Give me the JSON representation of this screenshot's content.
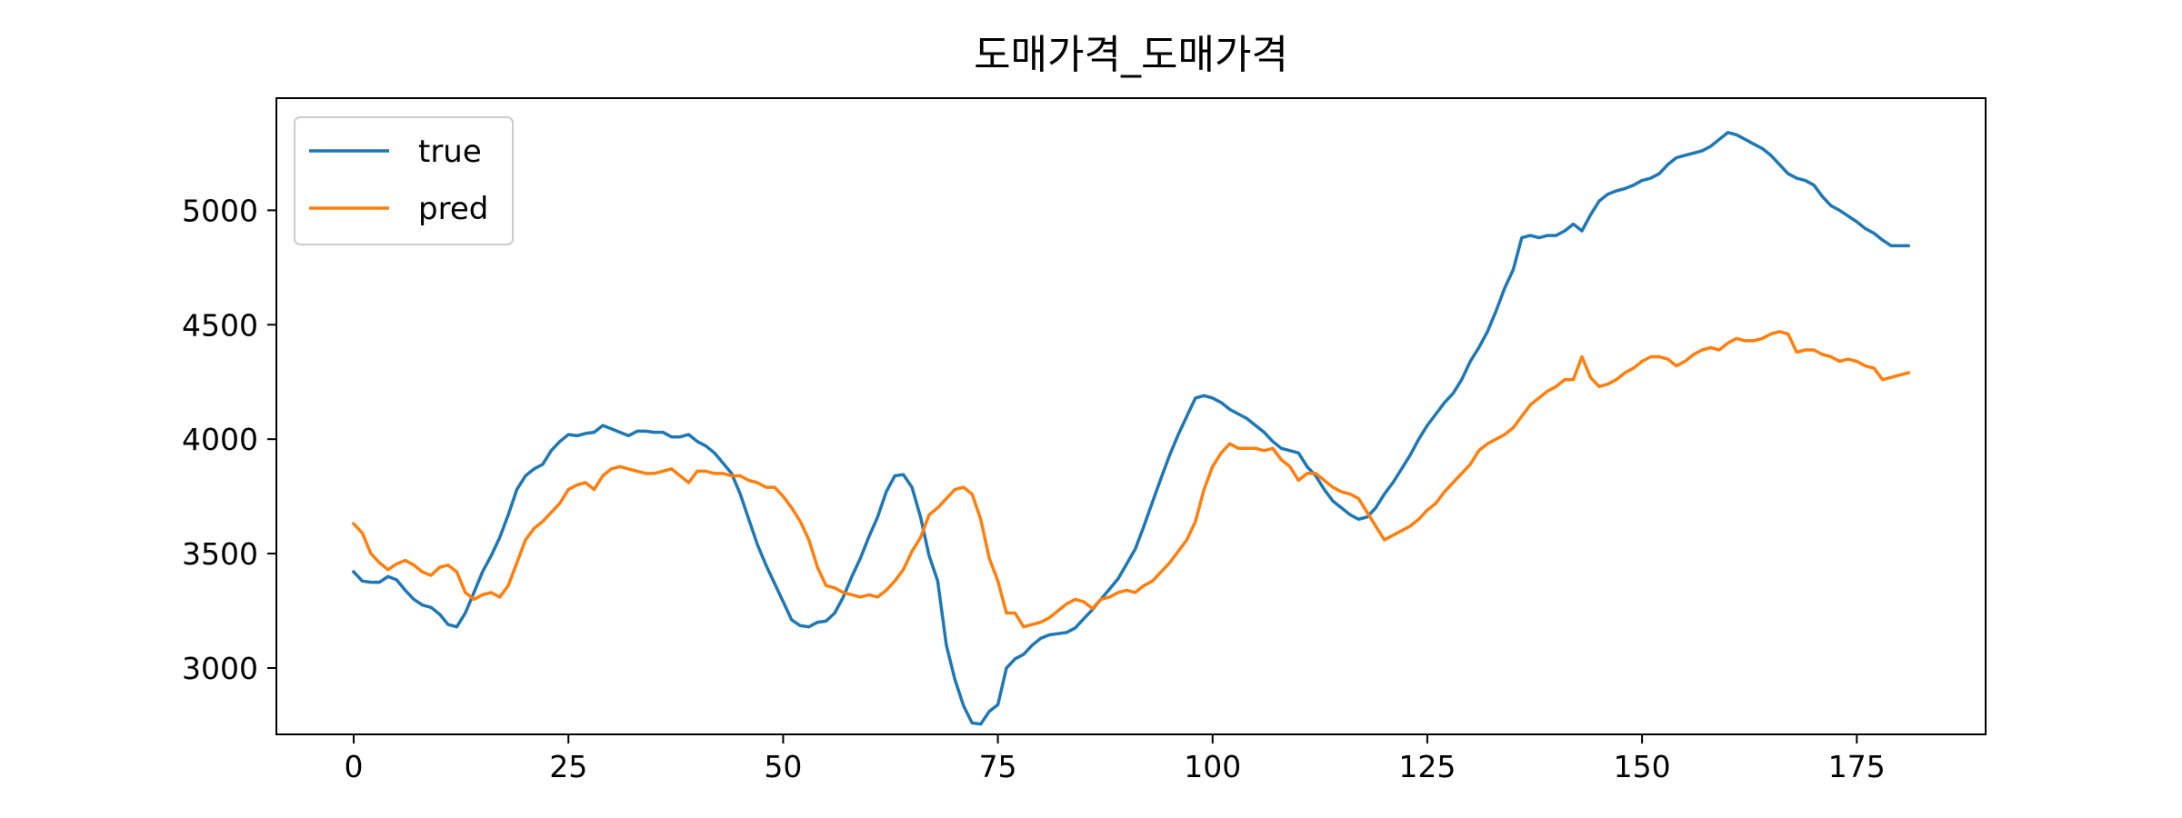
{
  "chart_data": {
    "type": "line",
    "title": "도매가격_도매가격",
    "xlabel": "",
    "ylabel": "",
    "xlim": [
      -9,
      190
    ],
    "ylim": [
      2710,
      5490
    ],
    "xticks": [
      0,
      25,
      50,
      75,
      100,
      125,
      150,
      175
    ],
    "yticks": [
      3000,
      3500,
      4000,
      4500,
      5000
    ],
    "grid": false,
    "legend_position": "top-left",
    "series": [
      {
        "name": "true",
        "color": "#1f77b4",
        "x": [
          0,
          1,
          2,
          3,
          4,
          5,
          6,
          7,
          8,
          9,
          10,
          11,
          12,
          13,
          14,
          15,
          16,
          17,
          18,
          19,
          20,
          21,
          22,
          23,
          24,
          25,
          26,
          27,
          28,
          29,
          30,
          31,
          32,
          33,
          34,
          35,
          36,
          37,
          38,
          39,
          40,
          41,
          42,
          43,
          44,
          45,
          46,
          47,
          48,
          49,
          50,
          51,
          52,
          53,
          54,
          55,
          56,
          57,
          58,
          59,
          60,
          61,
          62,
          63,
          64,
          65,
          66,
          67,
          68,
          69,
          70,
          71,
          72,
          73,
          74,
          75,
          76,
          77,
          78,
          79,
          80,
          81,
          82,
          83,
          84,
          85,
          86,
          87,
          88,
          89,
          90,
          91,
          92,
          93,
          94,
          95,
          96,
          97,
          98,
          99,
          100,
          101,
          102,
          103,
          104,
          105,
          106,
          107,
          108,
          109,
          110,
          111,
          112,
          113,
          114,
          115,
          116,
          117,
          118,
          119,
          120,
          121,
          122,
          123,
          124,
          125,
          126,
          127,
          128,
          129,
          130,
          131,
          132,
          133,
          134,
          135,
          136,
          137,
          138,
          139,
          140,
          141,
          142,
          143,
          144,
          145,
          146,
          147,
          148,
          149,
          150,
          151,
          152,
          153,
          154,
          155,
          156,
          157,
          158,
          159,
          160,
          161,
          162,
          163,
          164,
          165,
          166,
          167,
          168,
          169,
          170,
          171,
          172,
          173,
          174,
          175,
          176,
          177,
          178,
          179,
          180,
          181
        ],
        "y": [
          3420,
          3380,
          3375,
          3375,
          3400,
          3385,
          3340,
          3300,
          3275,
          3265,
          3235,
          3190,
          3180,
          3240,
          3330,
          3420,
          3490,
          3570,
          3670,
          3780,
          3840,
          3870,
          3890,
          3950,
          3990,
          4020,
          4015,
          4025,
          4030,
          4060,
          4045,
          4030,
          4015,
          4035,
          4035,
          4030,
          4030,
          4010,
          4010,
          4020,
          3990,
          3970,
          3940,
          3895,
          3850,
          3760,
          3650,
          3540,
          3450,
          3370,
          3290,
          3210,
          3185,
          3180,
          3200,
          3205,
          3240,
          3310,
          3400,
          3480,
          3575,
          3660,
          3770,
          3840,
          3845,
          3790,
          3660,
          3490,
          3380,
          3100,
          2950,
          2835,
          2760,
          2755,
          2810,
          2840,
          3000,
          3040,
          3060,
          3100,
          3130,
          3145,
          3150,
          3155,
          3175,
          3215,
          3255,
          3300,
          3345,
          3390,
          3455,
          3520,
          3620,
          3725,
          3830,
          3930,
          4020,
          4100,
          4180,
          4190,
          4180,
          4160,
          4130,
          4110,
          4090,
          4060,
          4030,
          3990,
          3960,
          3950,
          3940,
          3880,
          3840,
          3780,
          3730,
          3700,
          3670,
          3650,
          3660,
          3700,
          3760,
          3810,
          3870,
          3930,
          4000,
          4060,
          4110,
          4160,
          4200,
          4260,
          4340,
          4400,
          4470,
          4560,
          4660,
          4740,
          4880,
          4890,
          4880,
          4890,
          4890,
          4910,
          4940,
          4910,
          4980,
          5040,
          5070,
          5085,
          5095,
          5110,
          5130,
          5140,
          5160,
          5200,
          5230,
          5240,
          5250,
          5260,
          5280,
          5310,
          5340,
          5330,
          5310,
          5290,
          5270,
          5240,
          5200,
          5160,
          5140,
          5130,
          5110,
          5060,
          5020,
          5000,
          4975,
          4950,
          4920,
          4900,
          4870,
          4845,
          4845,
          4845
        ]
      },
      {
        "name": "pred",
        "color": "#ff7f0e",
        "x": [
          0,
          1,
          2,
          3,
          4,
          5,
          6,
          7,
          8,
          9,
          10,
          11,
          12,
          13,
          14,
          15,
          16,
          17,
          18,
          19,
          20,
          21,
          22,
          23,
          24,
          25,
          26,
          27,
          28,
          29,
          30,
          31,
          32,
          33,
          34,
          35,
          36,
          37,
          38,
          39,
          40,
          41,
          42,
          43,
          44,
          45,
          46,
          47,
          48,
          49,
          50,
          51,
          52,
          53,
          54,
          55,
          56,
          57,
          58,
          59,
          60,
          61,
          62,
          63,
          64,
          65,
          66,
          67,
          68,
          69,
          70,
          71,
          72,
          73,
          74,
          75,
          76,
          77,
          78,
          79,
          80,
          81,
          82,
          83,
          84,
          85,
          86,
          87,
          88,
          89,
          90,
          91,
          92,
          93,
          94,
          95,
          96,
          97,
          98,
          99,
          100,
          101,
          102,
          103,
          104,
          105,
          106,
          107,
          108,
          109,
          110,
          111,
          112,
          113,
          114,
          115,
          116,
          117,
          118,
          119,
          120,
          121,
          122,
          123,
          124,
          125,
          126,
          127,
          128,
          129,
          130,
          131,
          132,
          133,
          134,
          135,
          136,
          137,
          138,
          139,
          140,
          141,
          142,
          143,
          144,
          145,
          146,
          147,
          148,
          149,
          150,
          151,
          152,
          153,
          154,
          155,
          156,
          157,
          158,
          159,
          160,
          161,
          162,
          163,
          164,
          165,
          166,
          167,
          168,
          169,
          170,
          171,
          172,
          173,
          174,
          175,
          176,
          177,
          178,
          179,
          180,
          181
        ],
        "y": [
          3630,
          3590,
          3500,
          3460,
          3430,
          3455,
          3470,
          3450,
          3420,
          3405,
          3440,
          3450,
          3420,
          3330,
          3300,
          3320,
          3330,
          3310,
          3360,
          3460,
          3560,
          3610,
          3640,
          3680,
          3720,
          3780,
          3800,
          3810,
          3780,
          3840,
          3870,
          3880,
          3870,
          3860,
          3850,
          3850,
          3860,
          3870,
          3840,
          3810,
          3860,
          3860,
          3850,
          3850,
          3840,
          3840,
          3820,
          3810,
          3790,
          3790,
          3750,
          3700,
          3640,
          3560,
          3440,
          3360,
          3350,
          3330,
          3320,
          3310,
          3320,
          3310,
          3340,
          3380,
          3430,
          3510,
          3570,
          3670,
          3700,
          3740,
          3780,
          3790,
          3760,
          3650,
          3480,
          3380,
          3240,
          3240,
          3180,
          3190,
          3200,
          3220,
          3250,
          3280,
          3300,
          3290,
          3260,
          3300,
          3310,
          3330,
          3340,
          3330,
          3360,
          3380,
          3420,
          3460,
          3510,
          3560,
          3640,
          3780,
          3880,
          3940,
          3980,
          3960,
          3960,
          3960,
          3950,
          3960,
          3910,
          3880,
          3820,
          3850,
          3850,
          3820,
          3790,
          3770,
          3760,
          3740,
          3680,
          3620,
          3560,
          3580,
          3600,
          3620,
          3650,
          3690,
          3720,
          3770,
          3810,
          3850,
          3890,
          3950,
          3980,
          4000,
          4020,
          4050,
          4100,
          4150,
          4180,
          4210,
          4230,
          4260,
          4260,
          4360,
          4270,
          4230,
          4240,
          4260,
          4290,
          4310,
          4340,
          4360,
          4360,
          4350,
          4320,
          4340,
          4370,
          4390,
          4400,
          4390,
          4420,
          4440,
          4430,
          4430,
          4440,
          4460,
          4470,
          4460,
          4380,
          4390,
          4390,
          4370,
          4360,
          4340,
          4350,
          4340,
          4320,
          4310,
          4260,
          4270,
          4280,
          4290
        ]
      }
    ]
  }
}
